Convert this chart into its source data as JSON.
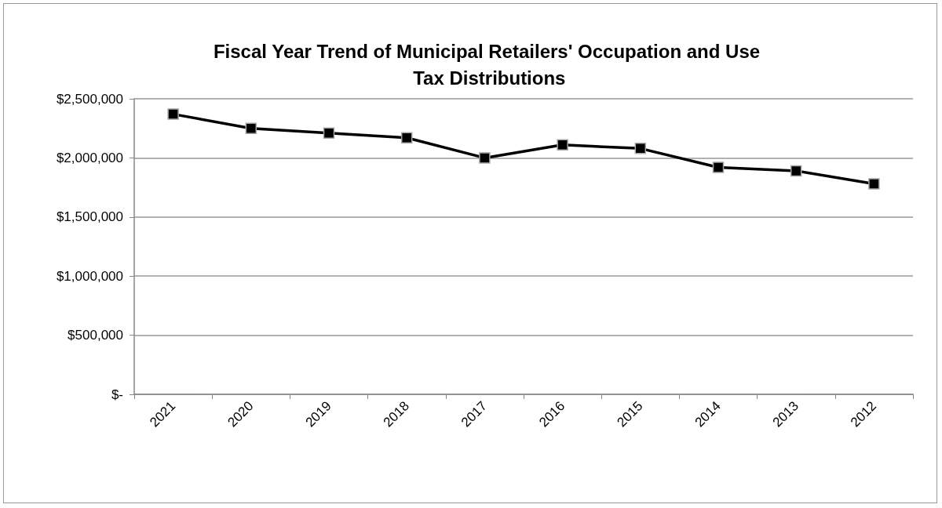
{
  "chart_data": {
    "type": "line",
    "title": "Fiscal Year Trend of Municipal Retailers' Occupation and Use Tax Distributions",
    "categories": [
      "2021",
      "2020",
      "2019",
      "2018",
      "2017",
      "2016",
      "2015",
      "2014",
      "2013",
      "2012"
    ],
    "series": [
      {
        "color": "#000000",
        "values": [
          2370000,
          2250000,
          2210000,
          2170000,
          2000000,
          2110000,
          2080000,
          1920000,
          1890000,
          1780000
        ]
      }
    ],
    "ylim": [
      0,
      2500000
    ],
    "yticks": [
      {
        "value": 0,
        "label": "$-"
      },
      {
        "value": 500000,
        "label": "$500,000"
      },
      {
        "value": 1000000,
        "label": "$1,000,000"
      },
      {
        "value": 1500000,
        "label": "$1,500,000"
      },
      {
        "value": 2000000,
        "label": "$2,000,000"
      },
      {
        "value": 2500000,
        "label": "$2,500,000"
      }
    ],
    "grid": "y",
    "marker": "square",
    "line_style": "solid"
  }
}
